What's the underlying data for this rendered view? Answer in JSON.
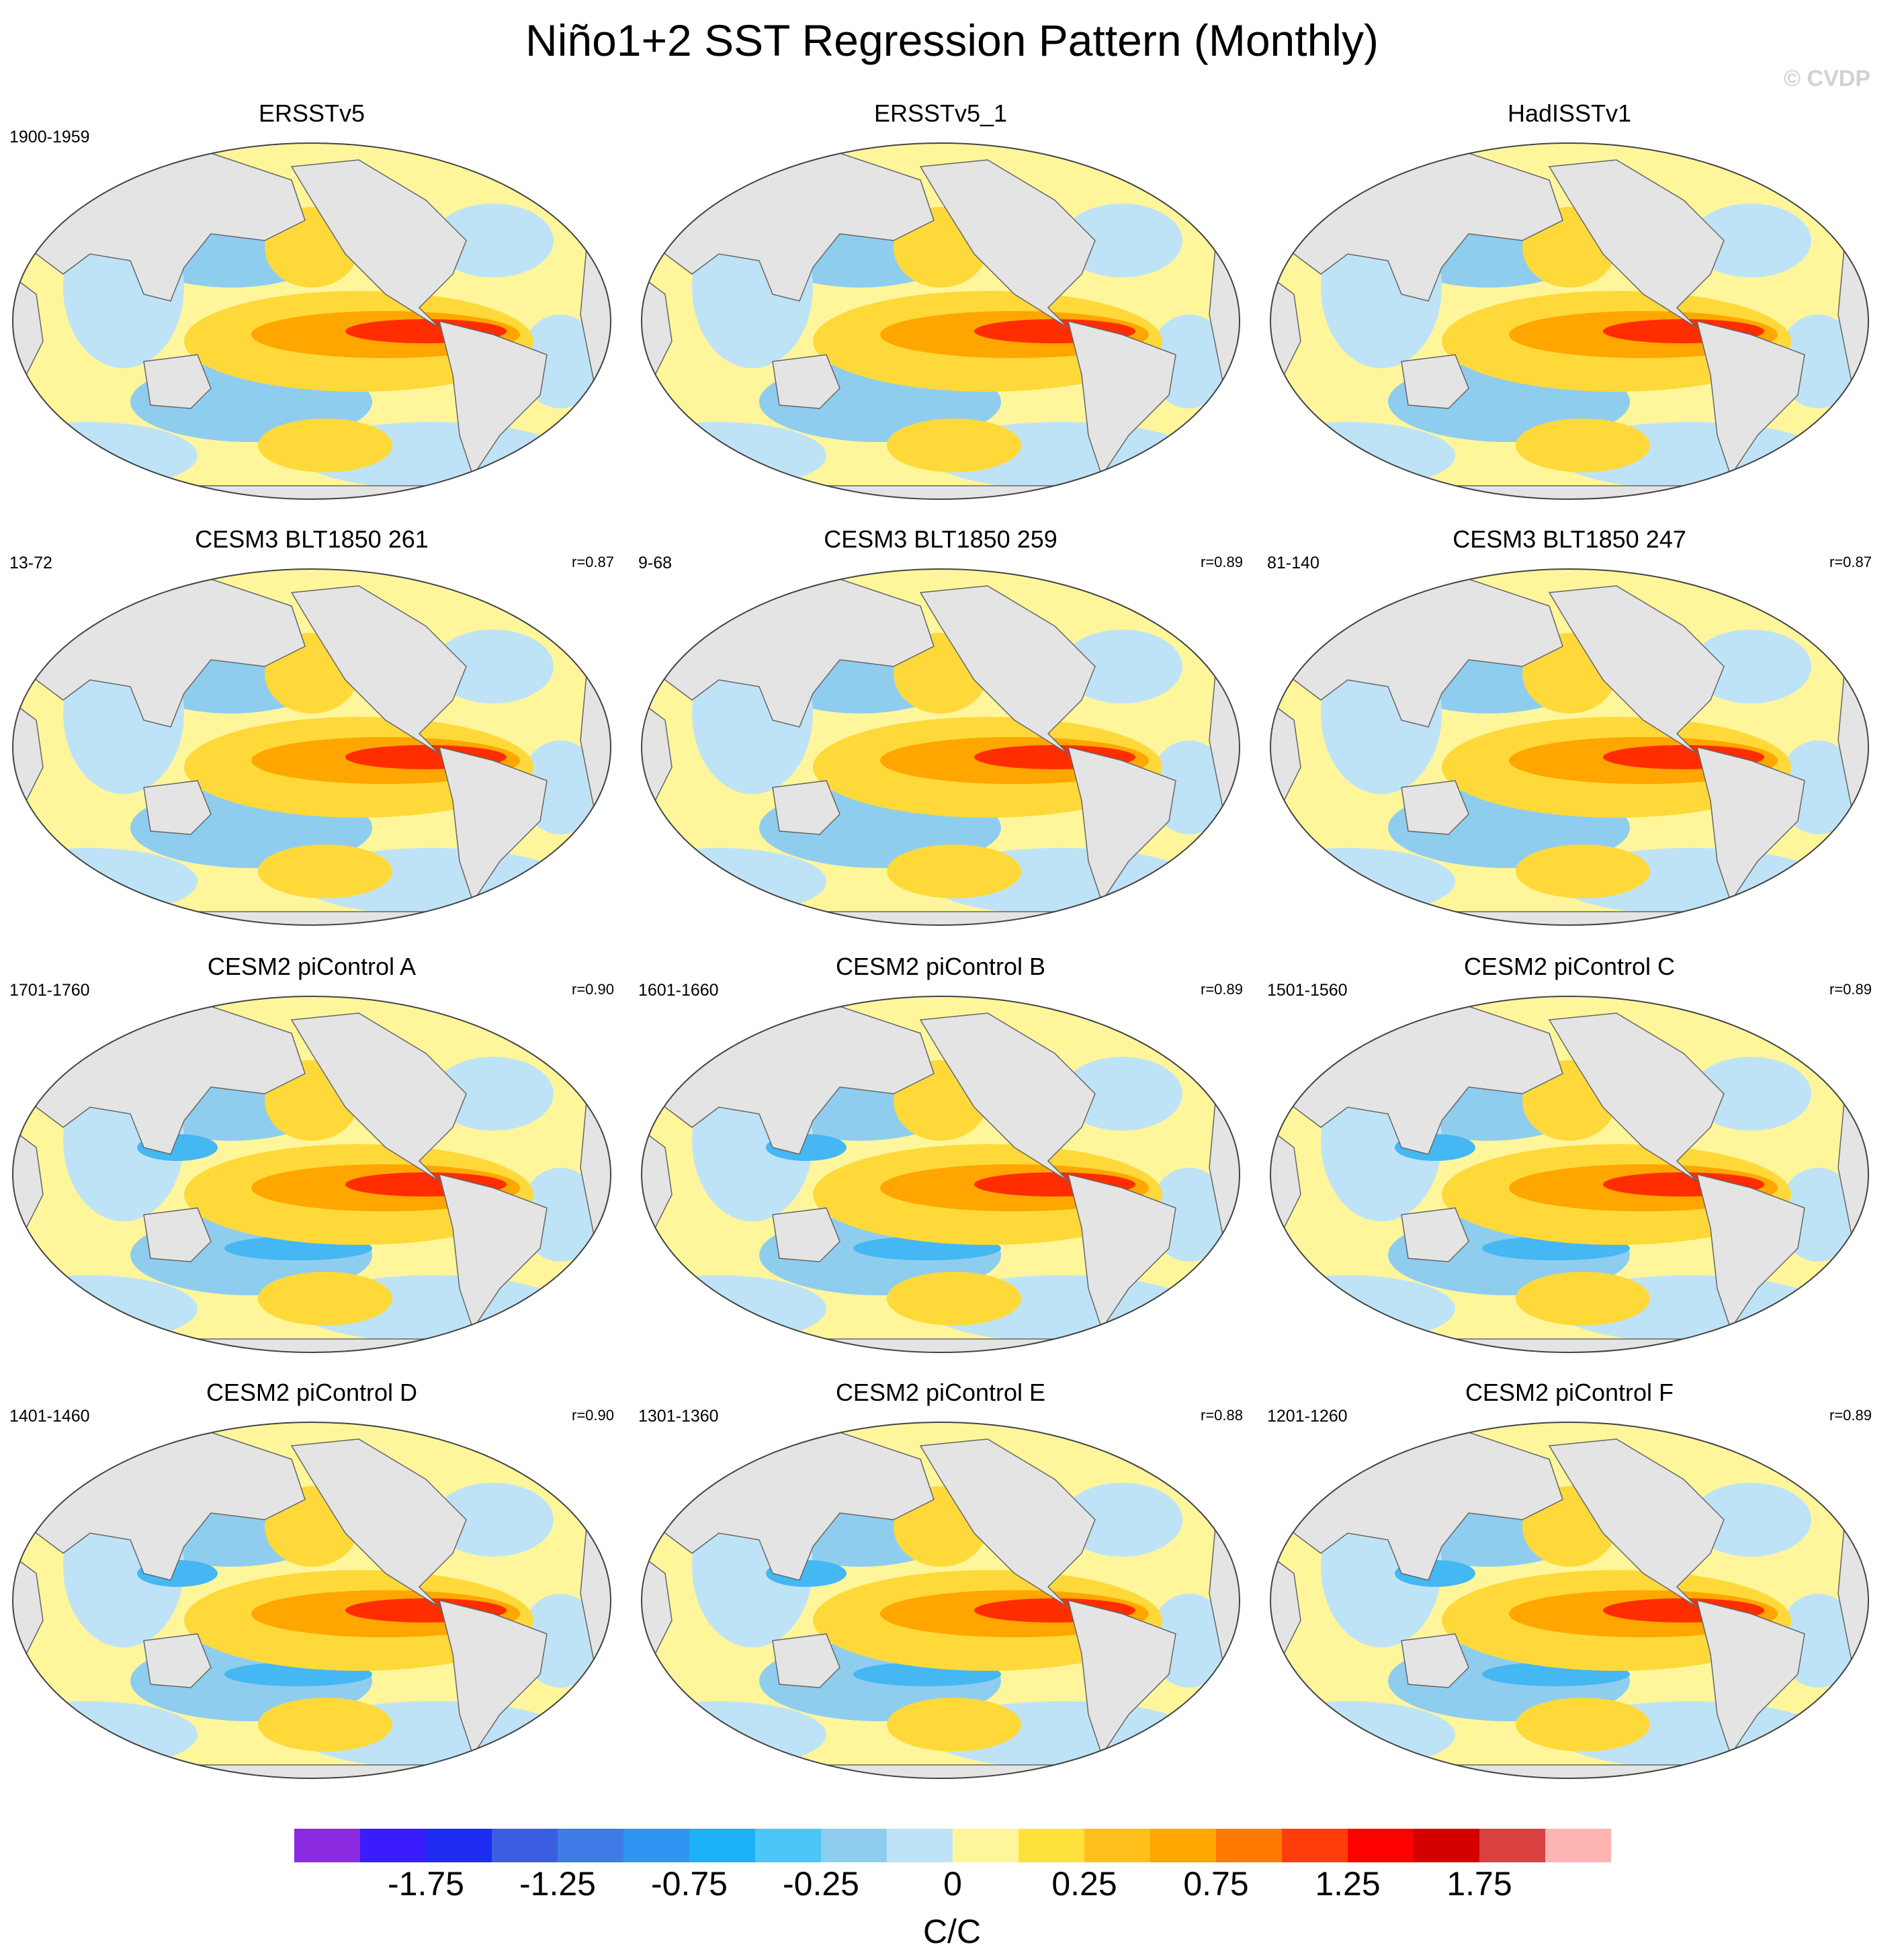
{
  "title": "Niño1+2 SST Regression Pattern (Monthly)",
  "credit": "© CVDP",
  "colors": {
    "land": "#e4e4e4",
    "coast": "#666666",
    "neg_weak": "#bfe3f6",
    "neg_mid": "#8fcdee",
    "neg_strong": "#45b7f3",
    "pos_weak": "#fff69c",
    "pos_mid": "#ffd93a",
    "pos_strong": "#ffa600",
    "pos_max": "#ff2d00"
  },
  "panels": [
    {
      "title": "ERSSTv5",
      "period": "1900-1959",
      "corr": ""
    },
    {
      "title": "ERSSTv5_1",
      "period": "",
      "corr": ""
    },
    {
      "title": "HadISSTv1",
      "period": "",
      "corr": ""
    },
    {
      "title": "CESM3 BLT1850 261",
      "period": "13-72",
      "corr": "r=0.87"
    },
    {
      "title": "CESM3 BLT1850 259",
      "period": "9-68",
      "corr": "r=0.89"
    },
    {
      "title": "CESM3 BLT1850 247",
      "period": "81-140",
      "corr": "r=0.87"
    },
    {
      "title": "CESM2 piControl A",
      "period": "1701-1760",
      "corr": "r=0.90"
    },
    {
      "title": "CESM2 piControl B",
      "period": "1601-1660",
      "corr": "r=0.89"
    },
    {
      "title": "CESM2 piControl C",
      "period": "1501-1560",
      "corr": "r=0.89"
    },
    {
      "title": "CESM2 piControl D",
      "period": "1401-1460",
      "corr": "r=0.90"
    },
    {
      "title": "CESM2 piControl E",
      "period": "1301-1360",
      "corr": "r=0.88"
    },
    {
      "title": "CESM2 piControl F",
      "period": "1201-1260",
      "corr": "r=0.89"
    }
  ],
  "colorbar": {
    "colors": [
      "#8a2be2",
      "#3a1cff",
      "#1e2bf0",
      "#3b5de0",
      "#3e7be6",
      "#2e96f2",
      "#1cb0f7",
      "#4cc6f8",
      "#8fcdee",
      "#bfe3f6",
      "#fff69c",
      "#ffe13c",
      "#ffbf1a",
      "#ffa600",
      "#ff7a00",
      "#ff3d0a",
      "#ff0000",
      "#d40000",
      "#d94040",
      "#ffb4b4"
    ],
    "ticks": [
      "-1.75",
      "-1.25",
      "-0.75",
      "-0.25",
      "0",
      "0.25",
      "0.75",
      "1.25",
      "1.75"
    ],
    "unit": "C/C"
  }
}
